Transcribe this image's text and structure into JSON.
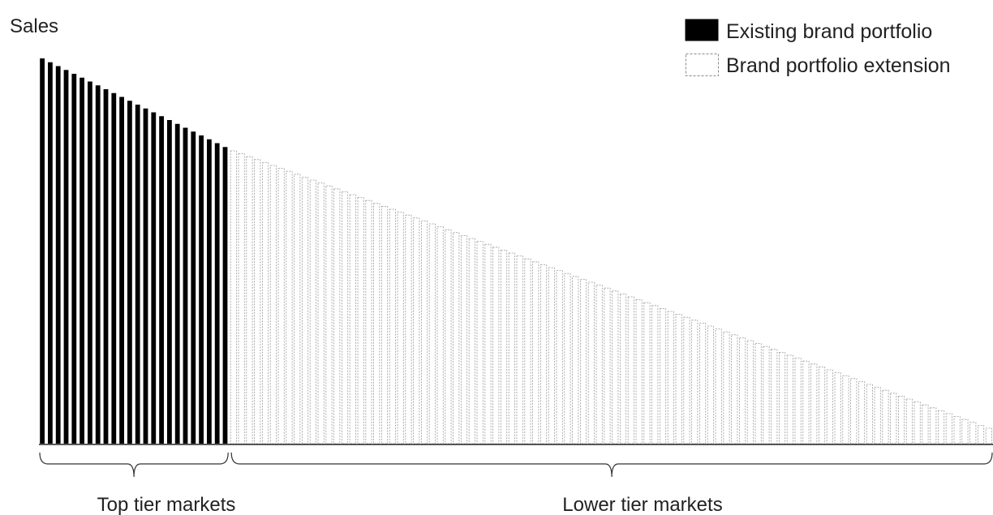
{
  "chart_data": {
    "type": "bar",
    "title": "",
    "xlabel": "",
    "ylabel": "Sales",
    "ylim": [
      0,
      100
    ],
    "bar_count": 120,
    "series": [
      {
        "name": "Existing brand portfolio",
        "start_value": 100,
        "end_value": 77,
        "count": 24,
        "style": "solid",
        "color": "#000000"
      },
      {
        "name": "Brand portfolio extension",
        "start_value": 76,
        "end_value": 4,
        "count": 96,
        "style": "dashed-outline",
        "color": "#9a9a9a"
      }
    ],
    "groups": [
      {
        "label": "Top tier markets",
        "series_index": 0
      },
      {
        "label": "Lower tier markets",
        "series_index": 1
      }
    ],
    "legend_position": "top-right",
    "grid": false
  }
}
